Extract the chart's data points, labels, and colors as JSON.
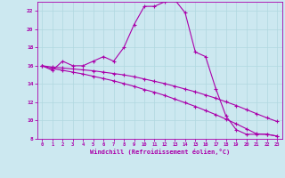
{
  "xlabel": "Windchill (Refroidissement éolien,°C)",
  "background_color": "#cce8f0",
  "line_color": "#aa00aa",
  "xdata": [
    0,
    1,
    2,
    3,
    4,
    5,
    6,
    7,
    8,
    9,
    10,
    11,
    12,
    13,
    14,
    15,
    16,
    17,
    18,
    19,
    20,
    21,
    22,
    23
  ],
  "line1": [
    16.0,
    15.5,
    16.5,
    16.0,
    16.0,
    16.5,
    17.0,
    16.5,
    18.0,
    20.5,
    22.5,
    22.5,
    23.0,
    23.2,
    21.8,
    17.5,
    17.0,
    13.5,
    10.5,
    9.0,
    8.5,
    8.5,
    8.5,
    8.3
  ],
  "line2": [
    16.0,
    15.85,
    15.75,
    15.65,
    15.55,
    15.45,
    15.3,
    15.15,
    15.0,
    14.8,
    14.55,
    14.3,
    14.05,
    13.75,
    13.45,
    13.15,
    12.8,
    12.45,
    12.05,
    11.65,
    11.2,
    10.75,
    10.3,
    9.9
  ],
  "line3": [
    16.0,
    15.7,
    15.5,
    15.3,
    15.1,
    14.85,
    14.6,
    14.35,
    14.05,
    13.75,
    13.4,
    13.1,
    12.75,
    12.35,
    11.95,
    11.55,
    11.1,
    10.65,
    10.15,
    9.65,
    9.1,
    8.55,
    8.5,
    8.3
  ],
  "ylim": [
    8,
    23
  ],
  "xlim": [
    -0.5,
    23.5
  ],
  "yticks": [
    8,
    10,
    12,
    14,
    16,
    18,
    20,
    22
  ],
  "xticks": [
    0,
    1,
    2,
    3,
    4,
    5,
    6,
    7,
    8,
    9,
    10,
    11,
    12,
    13,
    14,
    15,
    16,
    17,
    18,
    19,
    20,
    21,
    22,
    23
  ]
}
